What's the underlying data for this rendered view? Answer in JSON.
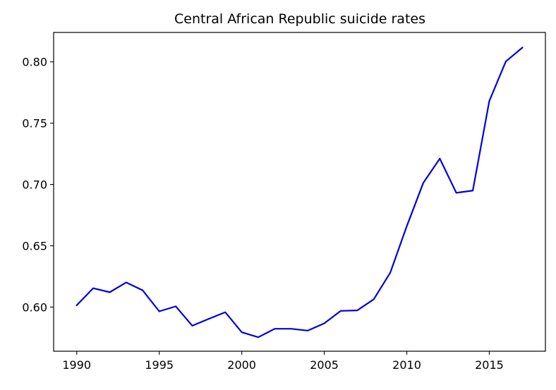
{
  "chart_data": {
    "type": "line",
    "title": "Central African Republic suicide rates",
    "xlabel": "",
    "ylabel": "",
    "x": [
      1990,
      1991,
      1992,
      1993,
      1994,
      1995,
      1996,
      1997,
      1998,
      1999,
      2000,
      2001,
      2002,
      2003,
      2004,
      2005,
      2006,
      2007,
      2008,
      2009,
      2010,
      2011,
      2012,
      2013,
      2014,
      2015,
      2016,
      2017
    ],
    "series": [
      {
        "color": "#0000dd",
        "values": [
          0.6015,
          0.6154,
          0.6121,
          0.6201,
          0.6136,
          0.5965,
          0.6006,
          0.5848,
          0.5904,
          0.5958,
          0.5795,
          0.5754,
          0.5823,
          0.5823,
          0.5808,
          0.5867,
          0.5969,
          0.5973,
          0.6064,
          0.6281,
          0.666,
          0.7013,
          0.7211,
          0.6932,
          0.695,
          0.7681,
          0.8003,
          0.8116
        ]
      }
    ],
    "xlim": [
      1988.6,
      2018.4
    ],
    "ylim": [
      0.564,
      0.824
    ],
    "xticks": [
      1990,
      1995,
      2000,
      2005,
      2010,
      2015
    ],
    "yticks": [
      0.6,
      0.65,
      0.7,
      0.75,
      0.8
    ],
    "ytick_labels": [
      "0.60",
      "0.65",
      "0.70",
      "0.75",
      "0.80"
    ],
    "grid": false,
    "legend": "none"
  }
}
